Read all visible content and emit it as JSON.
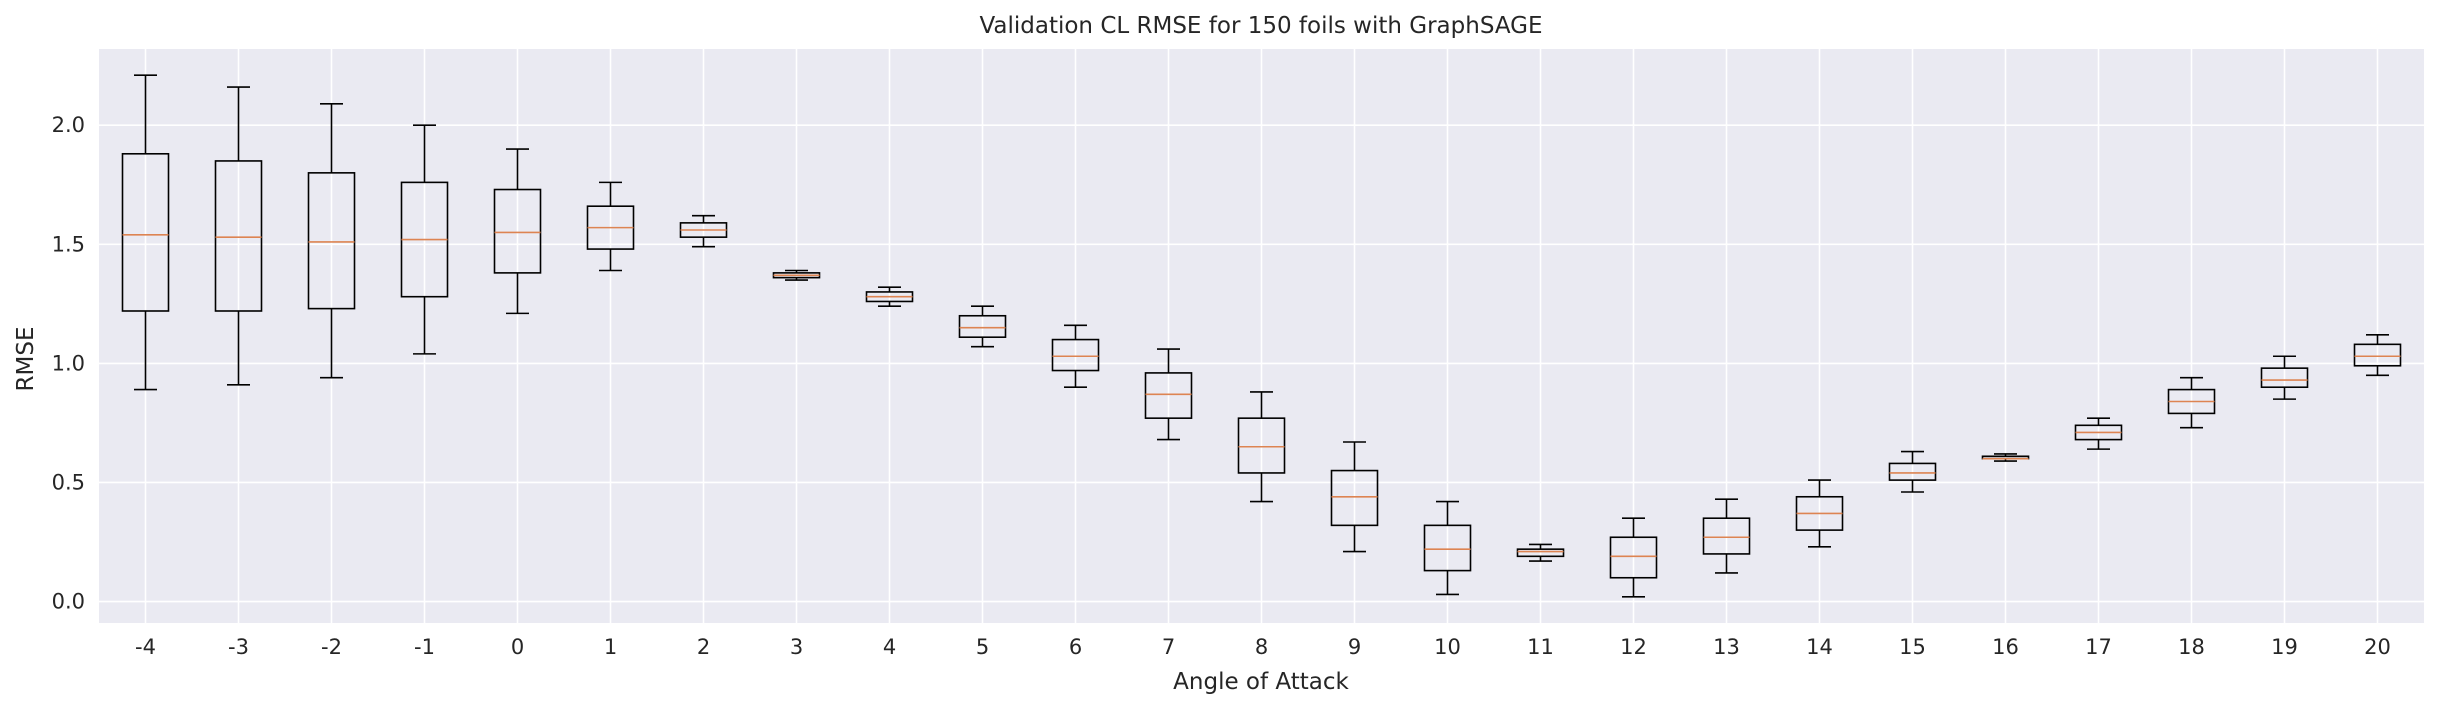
{
  "chart_data": {
    "type": "box",
    "title": "Validation CL RMSE for 150 foils with GraphSAGE",
    "xlabel": "Angle of Attack",
    "ylabel": "RMSE",
    "categories": [
      "-4",
      "-3",
      "-2",
      "-1",
      "0",
      "1",
      "2",
      "3",
      "4",
      "5",
      "6",
      "7",
      "8",
      "9",
      "10",
      "11",
      "12",
      "13",
      "14",
      "15",
      "16",
      "17",
      "18",
      "19",
      "20"
    ],
    "boxes": [
      {
        "whislo": 0.89,
        "q1": 1.22,
        "med": 1.54,
        "q3": 1.88,
        "whishi": 2.21
      },
      {
        "whislo": 0.91,
        "q1": 1.22,
        "med": 1.53,
        "q3": 1.85,
        "whishi": 2.16
      },
      {
        "whislo": 0.94,
        "q1": 1.23,
        "med": 1.51,
        "q3": 1.8,
        "whishi": 2.09
      },
      {
        "whislo": 1.04,
        "q1": 1.28,
        "med": 1.52,
        "q3": 1.76,
        "whishi": 2.0
      },
      {
        "whislo": 1.21,
        "q1": 1.38,
        "med": 1.55,
        "q3": 1.73,
        "whishi": 1.9
      },
      {
        "whislo": 1.39,
        "q1": 1.48,
        "med": 1.57,
        "q3": 1.66,
        "whishi": 1.76
      },
      {
        "whislo": 1.49,
        "q1": 1.53,
        "med": 1.56,
        "q3": 1.59,
        "whishi": 1.62
      },
      {
        "whislo": 1.35,
        "q1": 1.36,
        "med": 1.37,
        "q3": 1.38,
        "whishi": 1.39
      },
      {
        "whislo": 1.24,
        "q1": 1.26,
        "med": 1.28,
        "q3": 1.3,
        "whishi": 1.32
      },
      {
        "whislo": 1.07,
        "q1": 1.11,
        "med": 1.15,
        "q3": 1.2,
        "whishi": 1.24
      },
      {
        "whislo": 0.9,
        "q1": 0.97,
        "med": 1.03,
        "q3": 1.1,
        "whishi": 1.16
      },
      {
        "whislo": 0.68,
        "q1": 0.77,
        "med": 0.87,
        "q3": 0.96,
        "whishi": 1.06
      },
      {
        "whislo": 0.42,
        "q1": 0.54,
        "med": 0.65,
        "q3": 0.77,
        "whishi": 0.88
      },
      {
        "whislo": 0.21,
        "q1": 0.32,
        "med": 0.44,
        "q3": 0.55,
        "whishi": 0.67
      },
      {
        "whislo": 0.03,
        "q1": 0.13,
        "med": 0.22,
        "q3": 0.32,
        "whishi": 0.42
      },
      {
        "whislo": 0.17,
        "q1": 0.19,
        "med": 0.21,
        "q3": 0.22,
        "whishi": 0.24
      },
      {
        "whislo": 0.02,
        "q1": 0.1,
        "med": 0.19,
        "q3": 0.27,
        "whishi": 0.35
      },
      {
        "whislo": 0.12,
        "q1": 0.2,
        "med": 0.27,
        "q3": 0.35,
        "whishi": 0.43
      },
      {
        "whislo": 0.23,
        "q1": 0.3,
        "med": 0.37,
        "q3": 0.44,
        "whishi": 0.51
      },
      {
        "whislo": 0.46,
        "q1": 0.51,
        "med": 0.54,
        "q3": 0.58,
        "whishi": 0.63
      },
      {
        "whislo": 0.59,
        "q1": 0.6,
        "med": 0.6,
        "q3": 0.61,
        "whishi": 0.62
      },
      {
        "whislo": 0.64,
        "q1": 0.68,
        "med": 0.71,
        "q3": 0.74,
        "whishi": 0.77
      },
      {
        "whislo": 0.73,
        "q1": 0.79,
        "med": 0.84,
        "q3": 0.89,
        "whishi": 0.94
      },
      {
        "whislo": 0.85,
        "q1": 0.9,
        "med": 0.93,
        "q3": 0.98,
        "whishi": 1.03
      },
      {
        "whislo": 0.95,
        "q1": 0.99,
        "med": 1.03,
        "q3": 1.08,
        "whishi": 1.12
      }
    ],
    "yticks": [
      0.0,
      0.5,
      1.0,
      1.5,
      2.0
    ],
    "ytick_labels": [
      "0.0",
      "0.5",
      "1.0",
      "1.5",
      "2.0"
    ],
    "ylim": [
      -0.09,
      2.32
    ],
    "grid": true,
    "colors": {
      "background": "#eaeaf2",
      "grid": "#ffffff",
      "box": "#000000",
      "median": "#dd8452"
    }
  }
}
